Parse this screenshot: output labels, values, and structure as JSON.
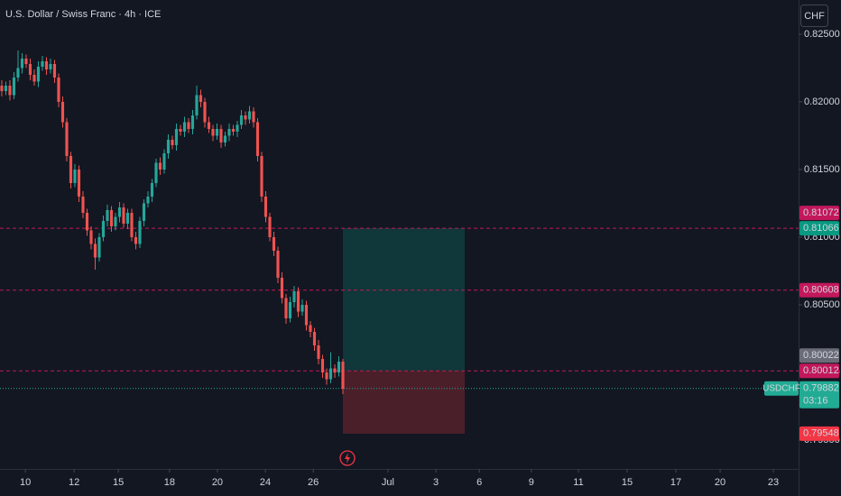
{
  "chart_data": {
    "type": "candlestick",
    "title": "U.S. Dollar / Swiss Franc · 4h · ICE",
    "currency": "CHF",
    "up_color": "#26a69a",
    "down_color": "#ef5350",
    "x": [
      0,
      1,
      2,
      3,
      4,
      5,
      6,
      7,
      8,
      9,
      10,
      11,
      12,
      13,
      14,
      15,
      16,
      17,
      18,
      19,
      20,
      21,
      22,
      23,
      24,
      25,
      26,
      27,
      28,
      29,
      30,
      31,
      32,
      33,
      34,
      35,
      36,
      37,
      38,
      39,
      40,
      41,
      42,
      43,
      44,
      45,
      46,
      47,
      48,
      49,
      50,
      51,
      52,
      53,
      54,
      55,
      56,
      57,
      58,
      59,
      60,
      61,
      62,
      63,
      64,
      65,
      66,
      67,
      68,
      69,
      70,
      71,
      72,
      73,
      74,
      75,
      76,
      77,
      78,
      79,
      80,
      81,
      82,
      83,
      84
    ],
    "open": [
      0.8212,
      0.8208,
      0.8212,
      0.8205,
      0.8218,
      0.8225,
      0.8232,
      0.8228,
      0.822,
      0.8215,
      0.8226,
      0.823,
      0.8224,
      0.8228,
      0.8218,
      0.82,
      0.8185,
      0.816,
      0.814,
      0.815,
      0.813,
      0.8118,
      0.8105,
      0.8095,
      0.8085,
      0.81,
      0.8112,
      0.812,
      0.8108,
      0.8115,
      0.8122,
      0.811,
      0.8118,
      0.81,
      0.8095,
      0.8112,
      0.8125,
      0.813,
      0.814,
      0.8155,
      0.815,
      0.8162,
      0.8172,
      0.8168,
      0.818,
      0.8178,
      0.8185,
      0.818,
      0.819,
      0.8205,
      0.82,
      0.8185,
      0.818,
      0.8175,
      0.818,
      0.817,
      0.8175,
      0.818,
      0.8178,
      0.8183,
      0.819,
      0.8187,
      0.8193,
      0.8185,
      0.816,
      0.813,
      0.8115,
      0.81,
      0.809,
      0.807,
      0.8055,
      0.804,
      0.8052,
      0.806,
      0.8045,
      0.805,
      0.8035,
      0.803,
      0.802,
      0.801,
      0.8,
      0.7995,
      0.8003,
      0.8,
      0.8008
    ],
    "high": [
      0.8216,
      0.8215,
      0.8216,
      0.8222,
      0.8238,
      0.8236,
      0.8235,
      0.8232,
      0.8224,
      0.823,
      0.8234,
      0.8233,
      0.8232,
      0.8231,
      0.8221,
      0.8204,
      0.8188,
      0.8163,
      0.8154,
      0.8153,
      0.8134,
      0.8121,
      0.8108,
      0.8099,
      0.8103,
      0.8116,
      0.8124,
      0.8123,
      0.8118,
      0.8126,
      0.8125,
      0.8121,
      0.8121,
      0.8104,
      0.8115,
      0.8128,
      0.8134,
      0.8143,
      0.8158,
      0.8159,
      0.8165,
      0.8176,
      0.8175,
      0.8184,
      0.8183,
      0.8189,
      0.8188,
      0.8194,
      0.8212,
      0.8209,
      0.8203,
      0.8189,
      0.8183,
      0.8184,
      0.8183,
      0.8178,
      0.8184,
      0.8183,
      0.8186,
      0.8194,
      0.8193,
      0.8197,
      0.8196,
      0.8188,
      0.8163,
      0.8134,
      0.8118,
      0.8104,
      0.8093,
      0.8074,
      0.8058,
      0.8056,
      0.8064,
      0.8063,
      0.8054,
      0.8053,
      0.8038,
      0.8033,
      0.8024,
      0.8013,
      0.8003,
      0.8015,
      0.8006,
      0.8012,
      0.801
    ],
    "low": [
      0.8204,
      0.8205,
      0.8201,
      0.8202,
      0.8215,
      0.8221,
      0.8225,
      0.8216,
      0.8212,
      0.8211,
      0.8223,
      0.822,
      0.8221,
      0.8214,
      0.8196,
      0.8181,
      0.8156,
      0.8136,
      0.8137,
      0.8126,
      0.8114,
      0.8101,
      0.8091,
      0.8076,
      0.8082,
      0.8097,
      0.8108,
      0.8104,
      0.8105,
      0.8111,
      0.8107,
      0.8106,
      0.8097,
      0.8091,
      0.8092,
      0.8108,
      0.8122,
      0.8126,
      0.8137,
      0.8146,
      0.8147,
      0.8158,
      0.8165,
      0.8164,
      0.8175,
      0.8174,
      0.8177,
      0.8176,
      0.8187,
      0.8196,
      0.8181,
      0.8177,
      0.8171,
      0.8172,
      0.8166,
      0.8167,
      0.8171,
      0.8175,
      0.8174,
      0.818,
      0.8183,
      0.8184,
      0.8181,
      0.8156,
      0.8126,
      0.8111,
      0.8097,
      0.8086,
      0.8066,
      0.8051,
      0.8036,
      0.8037,
      0.8048,
      0.8041,
      0.8042,
      0.8031,
      0.8026,
      0.8016,
      0.8006,
      0.7996,
      0.7991,
      0.7992,
      0.7996,
      0.7997,
      0.7984
    ],
    "close": [
      0.8208,
      0.8212,
      0.8205,
      0.8218,
      0.8225,
      0.8232,
      0.8228,
      0.822,
      0.8215,
      0.8226,
      0.823,
      0.8224,
      0.8228,
      0.8218,
      0.82,
      0.8185,
      0.816,
      0.814,
      0.815,
      0.813,
      0.8118,
      0.8105,
      0.8095,
      0.8085,
      0.81,
      0.8112,
      0.812,
      0.8108,
      0.8115,
      0.8122,
      0.811,
      0.8118,
      0.81,
      0.8095,
      0.8112,
      0.8125,
      0.813,
      0.814,
      0.8155,
      0.815,
      0.8162,
      0.8172,
      0.8168,
      0.818,
      0.8178,
      0.8185,
      0.818,
      0.819,
      0.8205,
      0.82,
      0.8185,
      0.818,
      0.8175,
      0.818,
      0.817,
      0.8175,
      0.818,
      0.8178,
      0.8183,
      0.819,
      0.8187,
      0.8193,
      0.8185,
      0.816,
      0.813,
      0.8115,
      0.81,
      0.809,
      0.807,
      0.8055,
      0.804,
      0.8052,
      0.806,
      0.8045,
      0.805,
      0.8035,
      0.803,
      0.802,
      0.801,
      0.8,
      0.7995,
      0.8003,
      0.8,
      0.8008,
      0.7988
    ],
    "xlim": [
      -0.44,
      196.22
    ],
    "ylim": [
      0.79287,
      0.82753
    ],
    "xticks": [
      {
        "value": 5.8,
        "label": "10"
      },
      {
        "value": 17.8,
        "label": "12"
      },
      {
        "value": 28.7,
        "label": "15"
      },
      {
        "value": 41.3,
        "label": "18"
      },
      {
        "value": 53.1,
        "label": "20"
      },
      {
        "value": 64.9,
        "label": "24"
      },
      {
        "value": 76.7,
        "label": "26"
      },
      {
        "value": 95.1,
        "label": "Jul"
      },
      {
        "value": 106.9,
        "label": "3"
      },
      {
        "value": 117.6,
        "label": "6"
      },
      {
        "value": 130.4,
        "label": "9"
      },
      {
        "value": 142,
        "label": "11"
      },
      {
        "value": 154,
        "label": "15"
      },
      {
        "value": 166,
        "label": "17"
      },
      {
        "value": 176.9,
        "label": "20"
      },
      {
        "value": 190,
        "label": "23"
      }
    ],
    "yticks": [
      {
        "value": 0.825,
        "label": "0.82500"
      },
      {
        "value": 0.82,
        "label": "0.82000"
      },
      {
        "value": 0.815,
        "label": "0.81500"
      },
      {
        "value": 0.81,
        "label": "0.81000"
      },
      {
        "value": 0.805,
        "label": "0.80500"
      },
      {
        "value": 0.8,
        "label": "0.80000"
      },
      {
        "value": 0.795,
        "label": "0.79500"
      }
    ],
    "levels": [
      {
        "value": 0.81066,
        "color": "#c2185b"
      },
      {
        "value": 0.80608,
        "color": "#c2185b"
      },
      {
        "value": 0.80012,
        "color": "#c2185b"
      }
    ],
    "last_price": {
      "value": 0.79882,
      "color": "#22ab94"
    },
    "position": {
      "start": 84,
      "end": 114,
      "entry": 0.80012,
      "target": 0.81066,
      "stop": 0.79548
    },
    "price_labels": [
      {
        "value": 0.81072,
        "color": "#c2185b"
      },
      {
        "value": 0.81066,
        "color": "#089981"
      },
      {
        "value": 0.80608,
        "color": "#c2185b"
      },
      {
        "value": 0.80022,
        "color": "#6a6d78"
      },
      {
        "value": 0.80012,
        "color": "#c2185b"
      },
      {
        "value": 0.79882,
        "color": "#22ab94"
      },
      {
        "value": 0.79548,
        "color": "#f23645"
      }
    ],
    "symbol": "USDCHF",
    "countdown": "03:16"
  }
}
